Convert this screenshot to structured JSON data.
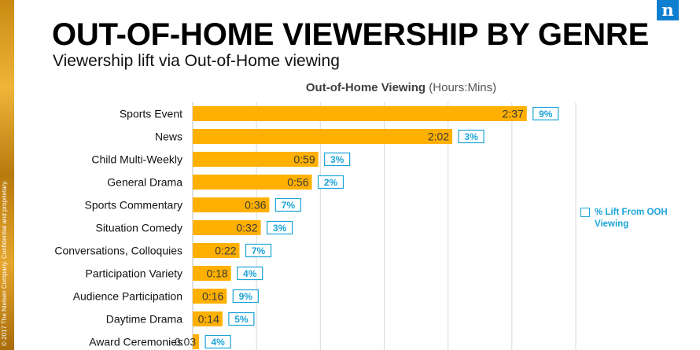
{
  "slide": {
    "title": "OUT-OF-HOME VIEWERSHIP BY GENRE",
    "subtitle": "Viewership lift via Out-of-Home viewing",
    "copyright": "© 2017 The Nielsen Company. Confidential and proprietary.",
    "logo_letter": "n"
  },
  "colors": {
    "bar": "#FFB000",
    "lift_text": "#1BA4D8",
    "grid": "#D9D9D9",
    "logo": "#0E7FCF"
  },
  "chart_data": {
    "type": "bar",
    "orientation": "horizontal",
    "title_bold": "Out-of-Home Viewing",
    "title_rest": " (Hours:Mins)",
    "categories": [
      "Sports Event",
      "News",
      "Child Multi-Weekly",
      "General Drama",
      "Sports Commentary",
      "Situation Comedy",
      "Conversations, Colloquies",
      "Participation Variety",
      "Audience Participation",
      "Daytime Drama",
      "Award Ceremonies"
    ],
    "series": [
      {
        "values_minutes": [
          157,
          122,
          59,
          56,
          36,
          32,
          22,
          18,
          16,
          14,
          3
        ],
        "labels": [
          "2:37",
          "2:02",
          "0:59",
          "0:56",
          "0:36",
          "0:32",
          "0:22",
          "0:18",
          "0:16",
          "0:14",
          "0:03"
        ]
      }
    ],
    "lift_percent": [
      "9%",
      "3%",
      "3%",
      "2%",
      "7%",
      "3%",
      "7%",
      "4%",
      "9%",
      "5%",
      "4%"
    ],
    "legend": [
      "% Lift From OOH Viewing"
    ],
    "xlim_minutes": [
      0,
      180
    ],
    "grid": true
  }
}
